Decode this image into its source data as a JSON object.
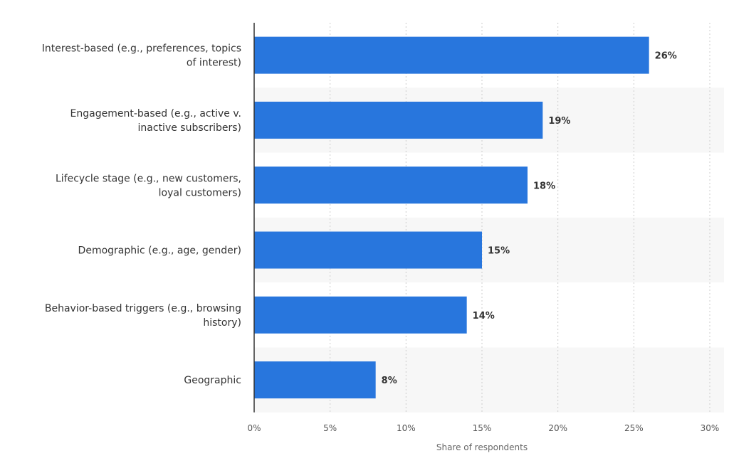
{
  "chart_data": {
    "type": "bar",
    "orientation": "horizontal",
    "categories": [
      [
        "Interest-based (e.g., preferences, topics",
        "of interest)"
      ],
      [
        "Engagement-based (e.g., active v.",
        "inactive subscribers)"
      ],
      [
        "Lifecycle stage (e.g., new customers,",
        "loyal customers)"
      ],
      [
        "Demographic (e.g., age, gender)"
      ],
      [
        "Behavior-based triggers (e.g., browsing",
        "history)"
      ],
      [
        "Geographic"
      ]
    ],
    "values": [
      26,
      19,
      18,
      15,
      14,
      8
    ],
    "value_labels": [
      "26%",
      "19%",
      "18%",
      "15%",
      "14%",
      "8%"
    ],
    "xlim": [
      0,
      30
    ],
    "xticks": [
      0,
      5,
      10,
      15,
      20,
      25,
      30
    ],
    "xtick_labels": [
      "0%",
      "5%",
      "10%",
      "15%",
      "20%",
      "25%",
      "30%"
    ],
    "xlabel": "Share of respondents",
    "grid": true,
    "colors": {
      "bar": "#2876dd",
      "band": "#f7f7f7",
      "grid": "#cccccc",
      "axis": "#333333"
    }
  }
}
